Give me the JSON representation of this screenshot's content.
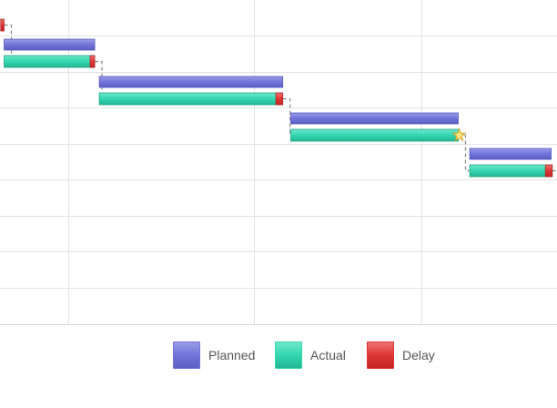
{
  "chart_data": {
    "type": "gantt",
    "title": "",
    "xlabel": "",
    "ylabel": "",
    "grid": true,
    "legend_position": "bottom-center",
    "series": [
      {
        "name": "Planned",
        "color": "#7173d8"
      },
      {
        "name": "Actual",
        "color": "#33d6b0"
      },
      {
        "name": "Delay",
        "color": "#de3535"
      }
    ],
    "tasks": [
      {
        "row": 1,
        "planned": [
          null,
          7.8
        ],
        "actual": [
          null,
          8.0
        ],
        "delay": [
          -0.1,
          0.2
        ]
      },
      {
        "row": 2,
        "planned": [
          0.2,
          8.1
        ],
        "actual": [
          0.2,
          8.1
        ],
        "delay": [
          7.7,
          8.1
        ]
      },
      {
        "row": 3,
        "planned": [
          8.5,
          24.5
        ],
        "actual": [
          8.5,
          24.5
        ],
        "delay": [
          23.9,
          24.5
        ]
      },
      {
        "row": 4,
        "planned": [
          25.2,
          39.8
        ],
        "actual": [
          25.2,
          39.8
        ],
        "milestone": 39.8
      },
      {
        "row": 5,
        "planned": [
          40.8,
          47.9
        ],
        "actual": [
          40.8,
          48.0
        ],
        "delay": [
          47.4,
          48.0
        ]
      },
      {
        "row": 6,
        "planned": [
          48.9,
          null
        ],
        "actual": [
          48.9,
          null
        ]
      }
    ],
    "dependencies": [
      [
        1,
        2
      ],
      [
        2,
        3
      ],
      [
        3,
        4
      ],
      [
        4,
        5
      ],
      [
        5,
        6
      ]
    ]
  },
  "legend": [
    {
      "label": "Planned",
      "color": "#7173d8"
    },
    {
      "label": "Actual",
      "color": "#33d6b0"
    },
    {
      "label": "Delay",
      "color": "#de3535"
    }
  ]
}
